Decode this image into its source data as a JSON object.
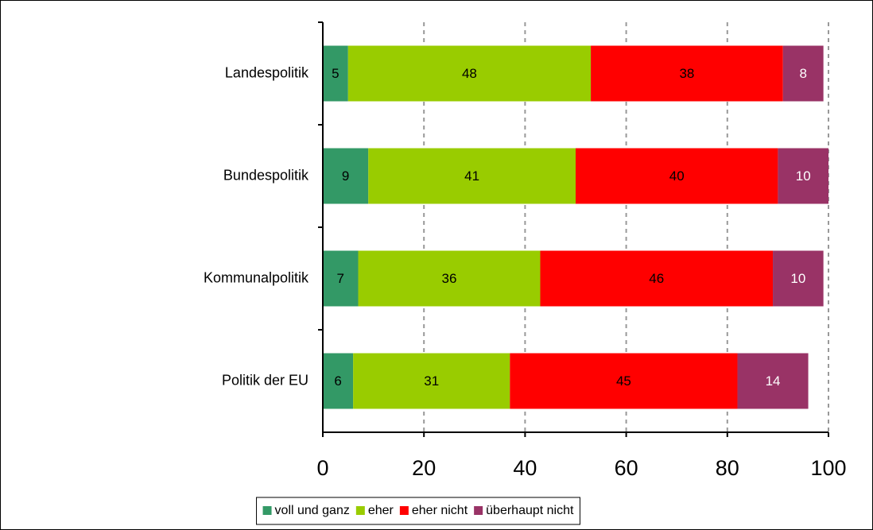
{
  "chart_data": {
    "type": "stacked-bar-horizontal",
    "categories": [
      "Landespolitik",
      "Bundespolitik",
      "Kommunalpolitik",
      "Politik der EU"
    ],
    "series": [
      {
        "name": "voll und ganz",
        "color": "#339966",
        "values": [
          5,
          9,
          7,
          6
        ]
      },
      {
        "name": "eher",
        "color": "#99cc00",
        "values": [
          48,
          41,
          36,
          31
        ]
      },
      {
        "name": "eher nicht",
        "color": "#ff0000",
        "values": [
          38,
          40,
          46,
          45
        ]
      },
      {
        "name": "überhaupt nicht",
        "color": "#993366",
        "values": [
          8,
          10,
          10,
          14
        ]
      }
    ],
    "xlim": [
      0,
      100
    ],
    "xticks": [
      0,
      20,
      40,
      60,
      80,
      100
    ],
    "grid": true,
    "legend": "bottom"
  }
}
